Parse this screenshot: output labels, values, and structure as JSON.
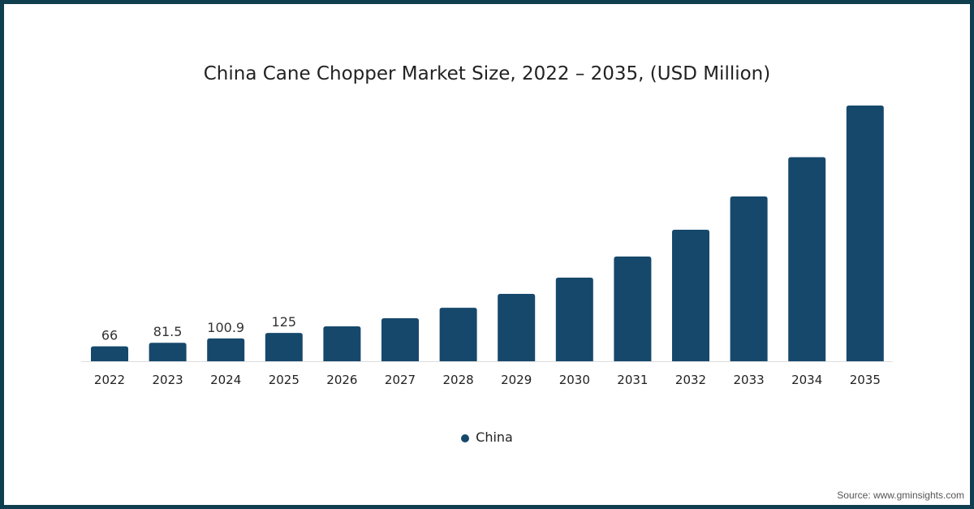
{
  "chart_data": {
    "type": "bar",
    "title": "China Cane Chopper Market Size, 2022 – 2035, (USD Million)",
    "xlabel": "",
    "ylabel": "",
    "categories": [
      "2022",
      "2023",
      "2024",
      "2025",
      "2026",
      "2027",
      "2028",
      "2029",
      "2030",
      "2031",
      "2032",
      "2033",
      "2034",
      "2035"
    ],
    "series": [
      {
        "name": "China",
        "values": [
          66,
          81.5,
          100.9,
          125,
          154,
          190,
          236,
          297,
          369,
          462,
          580,
          727,
          900,
          1128
        ]
      }
    ],
    "data_labels": [
      "66",
      "81.5",
      "100.9",
      "125",
      "",
      "",
      "",
      "",
      "",
      "",
      "",
      "",
      "",
      ""
    ],
    "ylim": [
      0,
      1128
    ],
    "grid": false,
    "legend": "bottom-center",
    "color": "#16486b"
  },
  "source": "Source: www.gminsights.com"
}
